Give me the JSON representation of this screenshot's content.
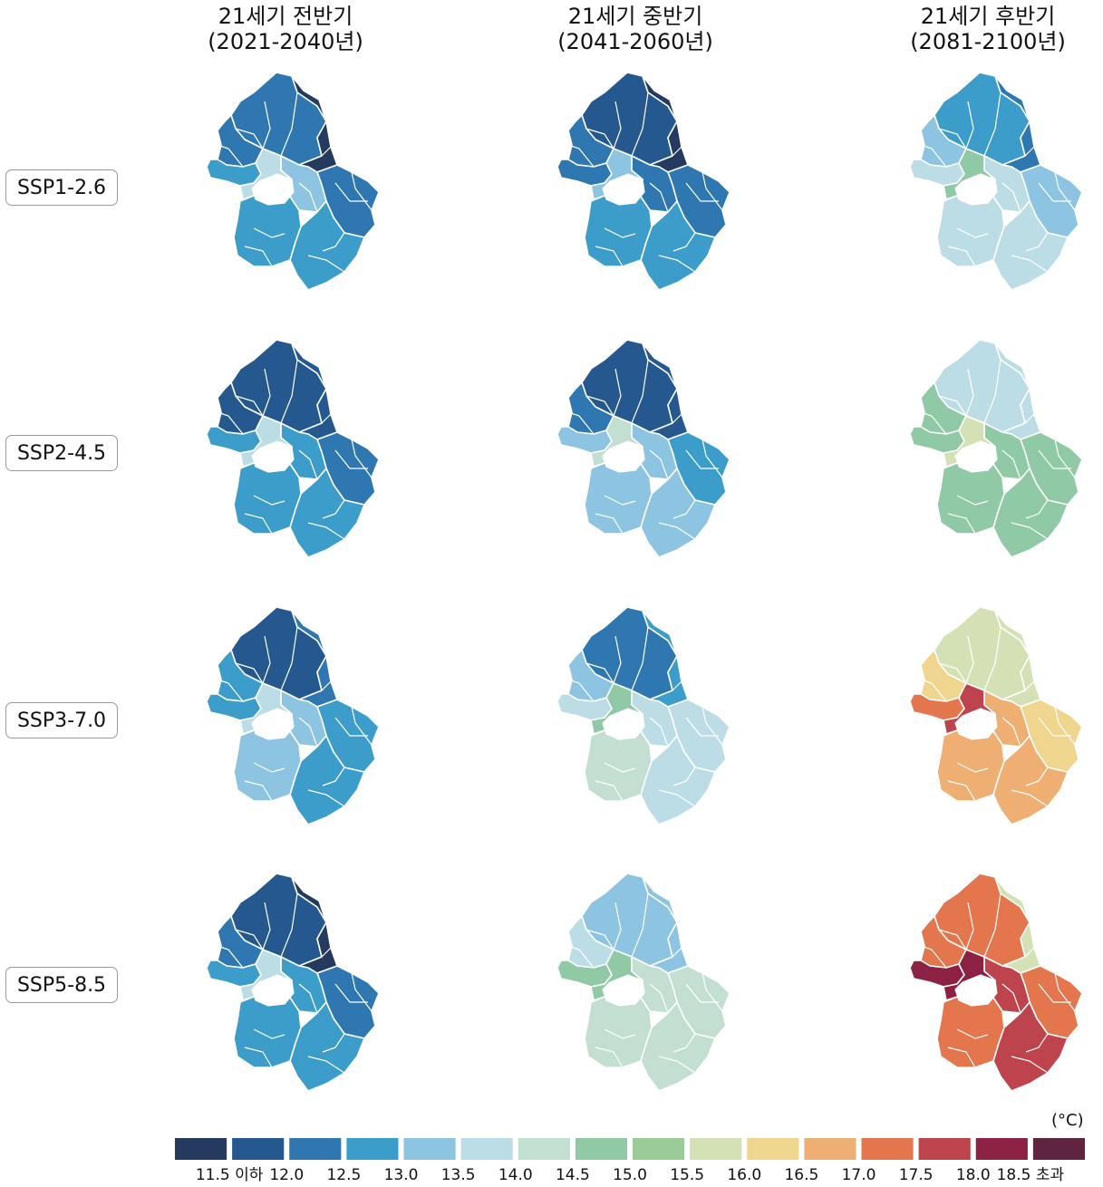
{
  "columns": [
    {
      "line1": "21세기 전반기",
      "line2": "(2021-2040년)"
    },
    {
      "line1": "21세기 중반기",
      "line2": "(2041-2060년)"
    },
    {
      "line1": "21세기 후반기",
      "line2": "(2081-2100년)"
    }
  ],
  "rows": [
    {
      "label": "SSP1-2.6"
    },
    {
      "label": "SSP2-4.5"
    },
    {
      "label": "SSP3-7.0"
    },
    {
      "label": "SSP5-8.5"
    }
  ],
  "palette": [
    "#243a5e",
    "#24588e",
    "#2e77b0",
    "#3c9dcb",
    "#8dc4e1",
    "#bcdde6",
    "#c3dfd2",
    "#8fc9a5",
    "#9ccb9a",
    "#d4e1b4",
    "#efd58d",
    "#efae72",
    "#e3764d",
    "#bd434c",
    "#8d2144",
    "#5e2440"
  ],
  "maps": [
    [
      {
        "n": 2,
        "ne": 0,
        "nw": 2,
        "w": 3,
        "c": 4,
        "e": 2,
        "s": 3,
        "sw": 3,
        "se": 3,
        "core": 5
      },
      {
        "n": 1,
        "ne": 0,
        "nw": 2,
        "w": 2,
        "c": 2,
        "e": 2,
        "s": 3,
        "sw": 3,
        "se": 3,
        "core": 4
      },
      {
        "n": 3,
        "ne": 2,
        "nw": 4,
        "w": 5,
        "c": 5,
        "e": 4,
        "s": 5,
        "sw": 5,
        "se": 5,
        "core": 7
      }
    ],
    [
      {
        "n": 1,
        "ne": 1,
        "nw": 1,
        "w": 3,
        "c": 3,
        "e": 2,
        "s": 3,
        "sw": 3,
        "se": 3,
        "core": 5
      },
      {
        "n": 1,
        "ne": 1,
        "nw": 2,
        "w": 4,
        "c": 4,
        "e": 3,
        "s": 4,
        "sw": 4,
        "se": 4,
        "core": 6
      },
      {
        "n": 5,
        "ne": 5,
        "nw": 7,
        "w": 7,
        "c": 7,
        "e": 7,
        "s": 7,
        "sw": 7,
        "se": 7,
        "core": 9
      }
    ],
    [
      {
        "n": 1,
        "ne": 2,
        "nw": 3,
        "w": 3,
        "c": 4,
        "e": 3,
        "s": 3,
        "sw": 4,
        "se": 3,
        "core": 5
      },
      {
        "n": 2,
        "ne": 3,
        "nw": 4,
        "w": 5,
        "c": 5,
        "e": 5,
        "s": 5,
        "sw": 6,
        "se": 5,
        "core": 7
      },
      {
        "n": 9,
        "ne": 9,
        "nw": 10,
        "w": 12,
        "c": 11,
        "e": 10,
        "s": 11,
        "sw": 11,
        "se": 11,
        "core": 13
      }
    ],
    [
      {
        "n": 1,
        "ne": 0,
        "nw": 2,
        "w": 3,
        "c": 3,
        "e": 2,
        "s": 3,
        "sw": 3,
        "se": 3,
        "core": 5
      },
      {
        "n": 4,
        "ne": 4,
        "nw": 5,
        "w": 7,
        "c": 6,
        "e": 6,
        "s": 6,
        "sw": 6,
        "se": 6,
        "core": 7
      },
      {
        "n": 12,
        "ne": 9,
        "nw": 12,
        "w": 14,
        "c": 13,
        "e": 12,
        "s": 13,
        "sw": 12,
        "se": 12,
        "core": 14
      }
    ]
  ],
  "legend": {
    "unit": "(°C)",
    "ticks": [
      "11.5 이하",
      "12.0",
      "12.5",
      "13.0",
      "13.5",
      "14.0",
      "14.5",
      "15.0",
      "15.5",
      "16.0",
      "16.5",
      "17.0",
      "17.5",
      "18.0",
      "18.5 초과"
    ]
  }
}
